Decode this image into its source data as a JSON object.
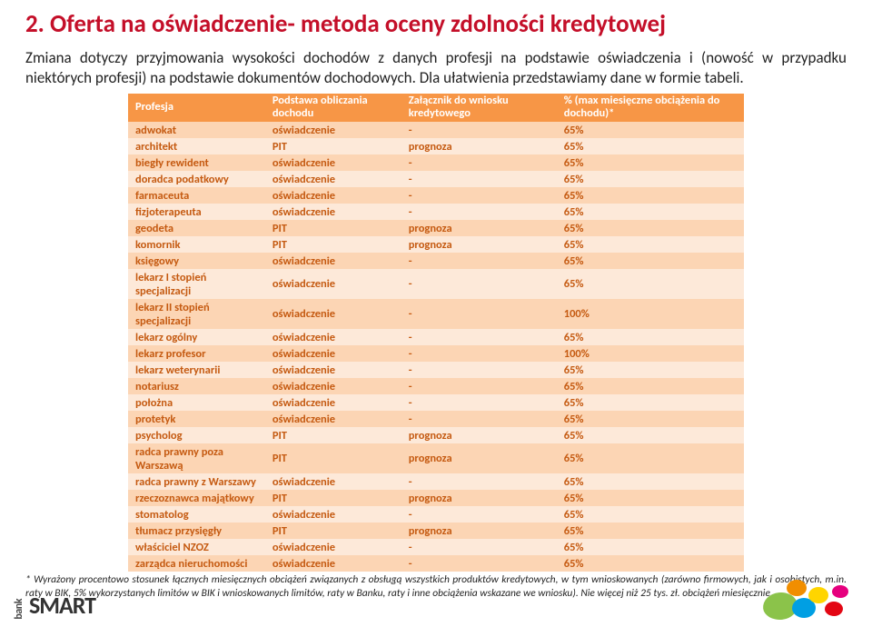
{
  "title": "2. Oferta na oświadczenie- metoda oceny zdolności kredytowej",
  "intro": "Zmiana dotyczy przyjmowania wysokości dochodów z danych profesji na podstawie oświadczenia i (nowość w przypadku niektórych profesji) na podstawie dokumentów dochodowych. Dla ułatwienia przedstawiamy dane w formie tabeli.",
  "table": {
    "header_bg": "#f79646",
    "header_fg": "#ffffff",
    "row_dark_bg": "#fcd5b4",
    "row_light_bg": "#fde9d9",
    "row_fg": "#c55a11",
    "columns": [
      "Profesja",
      "Podstawa obliczania dochodu",
      "Załącznik do wniosku kredytowego",
      "% (max miesięczne obciążenia do dochodu)*"
    ],
    "rows": [
      [
        "adwokat",
        "oświadczenie",
        "-",
        "65%"
      ],
      [
        "architekt",
        "PIT",
        "prognoza",
        "65%"
      ],
      [
        "biegły rewident",
        "oświadczenie",
        "-",
        "65%"
      ],
      [
        "doradca podatkowy",
        "oświadczenie",
        "-",
        "65%"
      ],
      [
        "farmaceuta",
        "oświadczenie",
        "-",
        "65%"
      ],
      [
        "fizjoterapeuta",
        "oświadczenie",
        "-",
        "65%"
      ],
      [
        "geodeta",
        "PIT",
        "prognoza",
        "65%"
      ],
      [
        "komornik",
        "PIT",
        "prognoza",
        "65%"
      ],
      [
        "księgowy",
        "oświadczenie",
        "-",
        "65%"
      ],
      [
        "lekarz I stopień specjalizacji",
        "oświadczenie",
        "-",
        "65%"
      ],
      [
        "lekarz II stopień specjalizacji",
        "oświadczenie",
        "-",
        "100%"
      ],
      [
        "lekarz ogólny",
        "oświadczenie",
        "-",
        "65%"
      ],
      [
        "lekarz profesor",
        "oświadczenie",
        "-",
        "100%"
      ],
      [
        "lekarz weterynarii",
        "oświadczenie",
        "-",
        "65%"
      ],
      [
        "notariusz",
        "oświadczenie",
        "-",
        "65%"
      ],
      [
        "położna",
        "oświadczenie",
        "-",
        "65%"
      ],
      [
        "protetyk",
        "oświadczenie",
        "-",
        "65%"
      ],
      [
        "psycholog",
        "PIT",
        "prognoza",
        "65%"
      ],
      [
        "radca prawny poza Warszawą",
        "PIT",
        "prognoza",
        "65%"
      ],
      [
        "radca prawny z Warszawy",
        "oświadczenie",
        "-",
        "65%"
      ],
      [
        "rzeczoznawca majątkowy",
        "PIT",
        "prognoza",
        "65%"
      ],
      [
        "stomatolog",
        "oświadczenie",
        "-",
        "65%"
      ],
      [
        "tłumacz przysięgły",
        "PIT",
        "prognoza",
        "65%"
      ],
      [
        "właściciel NZOZ",
        "oświadczenie",
        "-",
        "65%"
      ],
      [
        "zarządca nieruchomości",
        "oświadczenie",
        "-",
        "65%"
      ]
    ]
  },
  "footnote": "* Wyrażony procentowo  stosunek  łącznych miesięcznych obciążeń związanych z obsługą wszystkich produktów kredytowych, w tym wnioskowanych (zarówno firmowych, jak i osobistych, m.in. raty w BIK, 5% wykorzystanych limitów w BIK i wnioskowanych limitów, raty w Banku, raty i inne obciążenia wskazane we wniosku). Nie więcej niż 25 tys. zł. obciążeń miesięcznie.",
  "logo": {
    "top": "bank",
    "main": "SMART"
  }
}
